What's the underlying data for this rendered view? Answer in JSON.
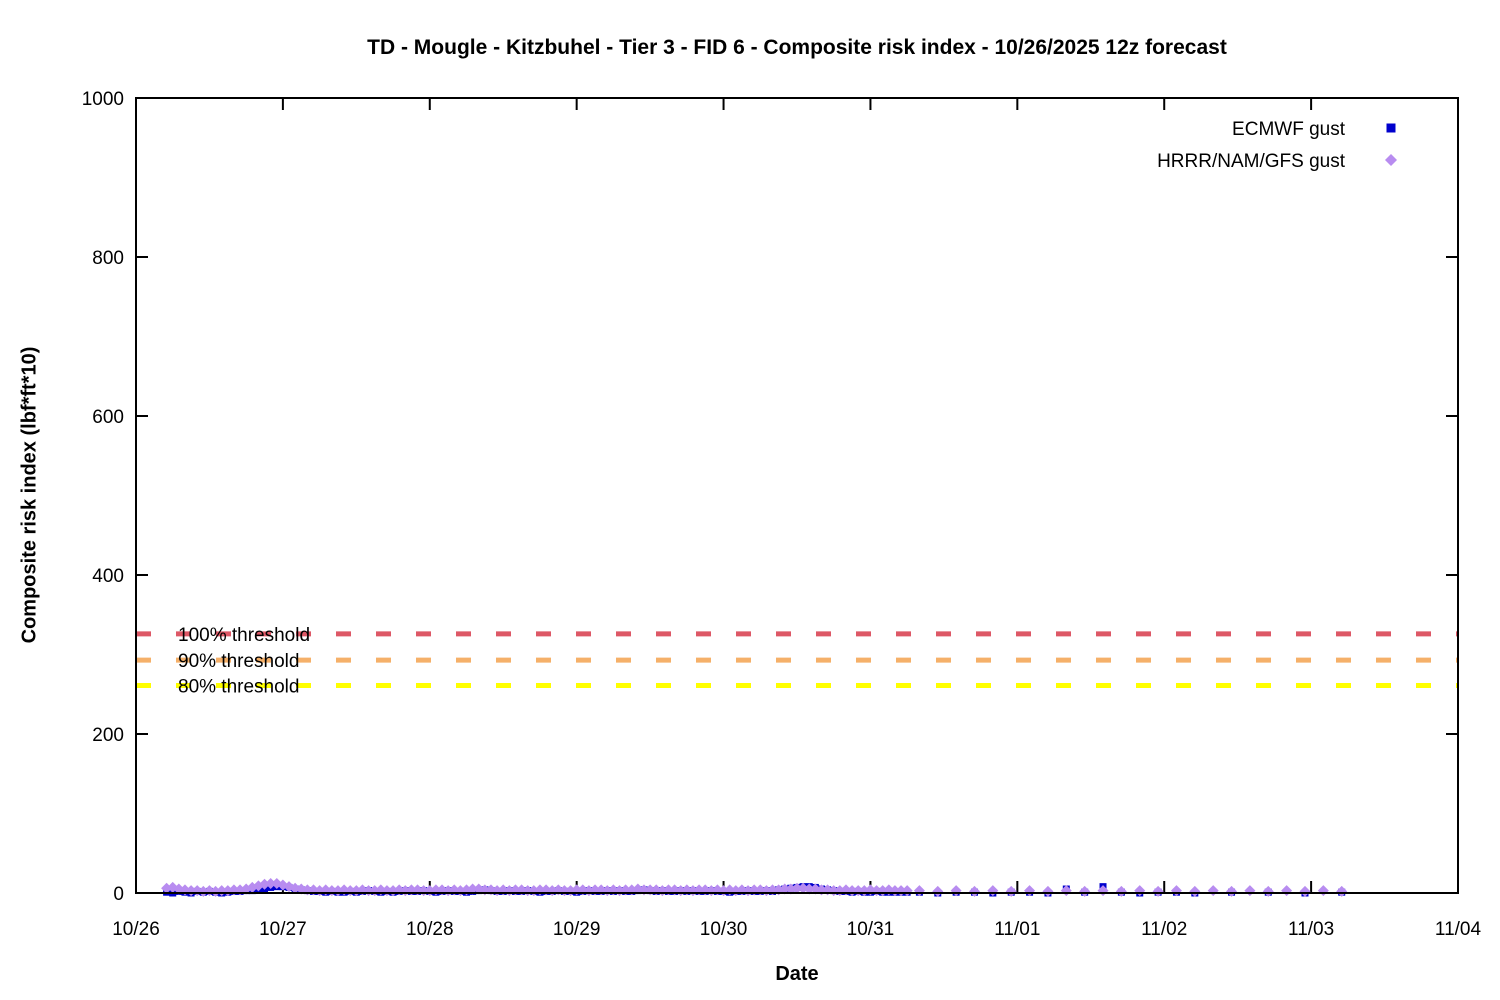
{
  "chart_data": {
    "type": "scatter",
    "title": "TD - Mougle - Kitzbuhel - Tier 3 - FID 6 - Composite risk index - 10/26/2025 12z forecast",
    "xlabel": "Date",
    "ylabel": "Composite risk index (lbf*ft*10)",
    "ylim": [
      0,
      1000
    ],
    "ytick_interval": 200,
    "x_tick_labels": [
      "10/26",
      "10/27",
      "10/28",
      "10/29",
      "10/30",
      "10/31",
      "11/01",
      "11/02",
      "11/03",
      "11/04"
    ],
    "x_range_days": 9,
    "grid": false,
    "legend_position": "top-right-inside",
    "axis_color": "#000000",
    "thresholds": [
      {
        "label": "100% threshold",
        "value": 326,
        "color": "#dd5866"
      },
      {
        "label": "90% threshold",
        "value": 293,
        "color": "#f5b069"
      },
      {
        "label": "80% threshold",
        "value": 261,
        "color": "#ffff00"
      }
    ],
    "series": [
      {
        "name": "ECMWF gust",
        "marker": "square",
        "color": "#0000cd",
        "segments": [
          {
            "start_hour": 5,
            "step_hours": 1,
            "values": [
              1,
              0,
              2,
              1,
              0,
              2,
              1,
              2,
              1,
              0,
              1,
              2,
              2,
              3,
              3,
              4,
              5,
              7,
              8,
              8,
              7,
              5,
              4,
              3,
              2,
              2,
              1,
              2,
              1,
              1,
              2,
              1,
              2,
              3,
              2,
              1,
              2,
              1,
              2,
              3,
              2,
              2,
              3,
              2,
              1,
              2,
              3,
              2,
              2,
              1,
              2,
              3,
              4,
              3,
              2,
              2,
              3,
              2,
              2,
              3,
              2,
              1,
              2,
              2,
              3,
              2,
              2,
              1,
              2,
              3,
              2,
              2,
              3,
              2,
              3,
              2,
              2,
              3,
              4,
              3,
              2,
              3,
              2,
              2,
              3,
              2,
              3,
              2,
              2,
              3,
              2,
              2,
              1,
              2,
              2,
              3,
              2,
              2,
              3,
              2,
              4,
              5,
              6,
              7,
              8,
              8,
              7,
              5,
              4,
              3,
              2,
              2,
              1,
              2,
              1,
              1,
              2,
              1,
              1,
              1,
              1,
              1
            ]
          }
        ],
        "points": [
          [
            128,
            1
          ],
          [
            131,
            0
          ],
          [
            134,
            1
          ],
          [
            137,
            1
          ],
          [
            140,
            0
          ],
          [
            143,
            1
          ],
          [
            146,
            1
          ],
          [
            149,
            0
          ],
          [
            152,
            5
          ],
          [
            155,
            1
          ],
          [
            158,
            8
          ],
          [
            161,
            1
          ],
          [
            164,
            0
          ],
          [
            167,
            1
          ],
          [
            170,
            1
          ],
          [
            173,
            0
          ],
          [
            179,
            1
          ],
          [
            185,
            1
          ],
          [
            191,
            0
          ],
          [
            197,
            1
          ]
        ]
      },
      {
        "name": "HRRR/NAM/GFS gust",
        "marker": "diamond",
        "color": "#b88cf0",
        "segments": [
          {
            "start_hour": 5,
            "step_hours": 1,
            "values": [
              6,
              7,
              5,
              4,
              3,
              3,
              2,
              3,
              2,
              3,
              3,
              4,
              4,
              5,
              7,
              9,
              11,
              12,
              12,
              10,
              8,
              6,
              5,
              4,
              4,
              3,
              4,
              3,
              3,
              4,
              3,
              3,
              4,
              3,
              3,
              4,
              3,
              3,
              4,
              3,
              4,
              4,
              3,
              3,
              4,
              4,
              3,
              4,
              3,
              4,
              5,
              5,
              4,
              4,
              3,
              4,
              3,
              4,
              4,
              3,
              3,
              4,
              4,
              3,
              4,
              3,
              3,
              4,
              4,
              3,
              4,
              4,
              3,
              4,
              3,
              4,
              4,
              5,
              4,
              4,
              4,
              3,
              4,
              4,
              3,
              4,
              3,
              4,
              4,
              3,
              4,
              3,
              4,
              3,
              4,
              3,
              4,
              4,
              3,
              4,
              4,
              5,
              5,
              6,
              6,
              5,
              5,
              4,
              4,
              3,
              3,
              4,
              3,
              3,
              3,
              4,
              3,
              3,
              4,
              3,
              3,
              3
            ]
          }
        ],
        "points": [
          [
            128,
            3
          ],
          [
            131,
            2
          ],
          [
            134,
            3
          ],
          [
            137,
            2
          ],
          [
            140,
            3
          ],
          [
            143,
            2
          ],
          [
            146,
            3
          ],
          [
            149,
            2
          ],
          [
            152,
            3
          ],
          [
            155,
            2
          ],
          [
            158,
            3
          ],
          [
            161,
            2
          ],
          [
            164,
            3
          ],
          [
            167,
            2
          ],
          [
            170,
            3
          ],
          [
            173,
            2
          ],
          [
            176,
            3
          ],
          [
            179,
            2
          ],
          [
            182,
            3
          ],
          [
            185,
            2
          ],
          [
            188,
            3
          ],
          [
            191,
            2
          ],
          [
            194,
            3
          ],
          [
            197,
            2
          ]
        ]
      }
    ]
  }
}
